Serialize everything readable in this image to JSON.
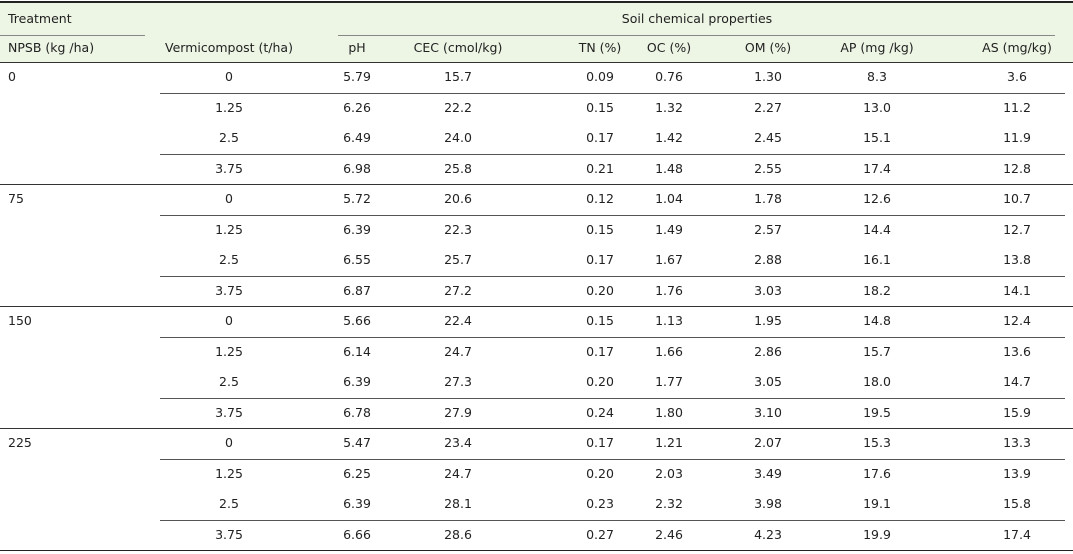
{
  "header": {
    "treatment": "Treatment",
    "soil": "Soil chemical properties",
    "columns": [
      "NPSB (kg /ha)",
      "Vermicompost (t/ha)",
      "pH",
      "CEC (cmol/kg)",
      "TN (%)",
      "OC (%)",
      "OM (%)",
      "AP (mg /kg)",
      "AS (mg/kg)"
    ]
  },
  "groups": [
    {
      "npsb": "0",
      "rows": [
        [
          "0",
          "5.79",
          "15.7",
          "0.09",
          "0.76",
          "1.30",
          "8.3",
          "3.6"
        ],
        [
          "1.25",
          "6.26",
          "22.2",
          "0.15",
          "1.32",
          "2.27",
          "13.0",
          "11.2"
        ],
        [
          "2.5",
          "6.49",
          "24.0",
          "0.17",
          "1.42",
          "2.45",
          "15.1",
          "11.9"
        ],
        [
          "3.75",
          "6.98",
          "25.8",
          "0.21",
          "1.48",
          "2.55",
          "17.4",
          "12.8"
        ]
      ]
    },
    {
      "npsb": "75",
      "rows": [
        [
          "0",
          "5.72",
          "20.6",
          "0.12",
          "1.04",
          "1.78",
          "12.6",
          "10.7"
        ],
        [
          "1.25",
          "6.39",
          "22.3",
          "0.15",
          "1.49",
          "2.57",
          "14.4",
          "12.7"
        ],
        [
          "2.5",
          "6.55",
          "25.7",
          "0.17",
          "1.67",
          "2.88",
          "16.1",
          "13.8"
        ],
        [
          "3.75",
          "6.87",
          "27.2",
          "0.20",
          "1.76",
          "3.03",
          "18.2",
          "14.1"
        ]
      ]
    },
    {
      "npsb": "150",
      "rows": [
        [
          "0",
          "5.66",
          "22.4",
          "0.15",
          "1.13",
          "1.95",
          "14.8",
          "12.4"
        ],
        [
          "1.25",
          "6.14",
          "24.7",
          "0.17",
          "1.66",
          "2.86",
          "15.7",
          "13.6"
        ],
        [
          "2.5",
          "6.39",
          "27.3",
          "0.20",
          "1.77",
          "3.05",
          "18.0",
          "14.7"
        ],
        [
          "3.75",
          "6.78",
          "27.9",
          "0.24",
          "1.80",
          "3.10",
          "19.5",
          "15.9"
        ]
      ]
    },
    {
      "npsb": "225",
      "rows": [
        [
          "0",
          "5.47",
          "23.4",
          "0.17",
          "1.21",
          "2.07",
          "15.3",
          "13.3"
        ],
        [
          "1.25",
          "6.25",
          "24.7",
          "0.20",
          "2.03",
          "3.49",
          "17.6",
          "13.9"
        ],
        [
          "2.5",
          "6.39",
          "28.1",
          "0.23",
          "2.32",
          "3.98",
          "19.1",
          "15.8"
        ],
        [
          "3.75",
          "6.66",
          "28.6",
          "0.27",
          "2.46",
          "4.23",
          "19.9",
          "17.4"
        ]
      ]
    }
  ]
}
